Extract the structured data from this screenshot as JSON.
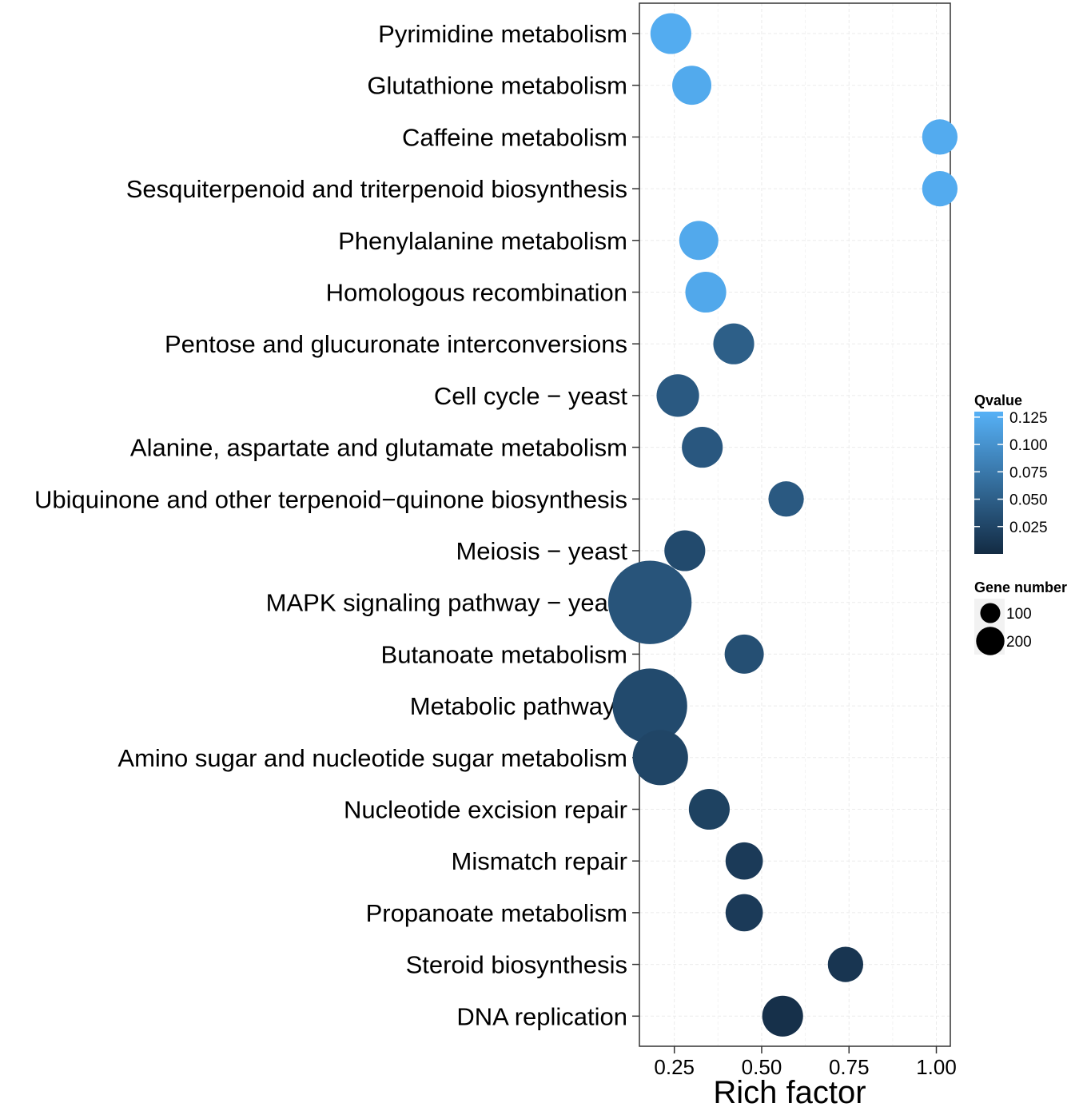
{
  "chart_data": {
    "type": "scatter",
    "title": "",
    "xlabel": "Rich factor",
    "ylabel": "",
    "xlim": [
      0.15,
      1.04
    ],
    "x_ticks": [
      0.25,
      0.5,
      0.75,
      1.0
    ],
    "x_tick_labels": [
      "0.25",
      "0.50",
      "0.75",
      "1.00"
    ],
    "grid": true,
    "categories": [
      "Pyrimidine metabolism",
      "Glutathione metabolism",
      "Caffeine metabolism",
      "Sesquiterpenoid and triterpenoid biosynthesis",
      "Phenylalanine metabolism",
      "Homologous recombination",
      "Pentose and glucuronate interconversions",
      "Cell cycle − yeast",
      "Alanine, aspartate and glutamate metabolism",
      "Ubiquinone and other terpenoid−quinone biosynthesis",
      "Meiosis − yeast",
      "MAPK signaling pathway − yeast",
      "Butanoate metabolism",
      "Metabolic pathways",
      "Amino sugar and nucleotide sugar metabolism",
      "Nucleotide excision repair",
      "Mismatch repair",
      "Propanoate metabolism",
      "Steroid biosynthesis",
      "DNA replication"
    ],
    "rich_factor": [
      0.24,
      0.3,
      1.01,
      1.01,
      0.32,
      0.34,
      0.42,
      0.26,
      0.33,
      0.57,
      0.28,
      0.18,
      0.45,
      0.18,
      0.21,
      0.35,
      0.45,
      0.45,
      0.74,
      0.56
    ],
    "qvalue": [
      0.125,
      0.123,
      0.124,
      0.124,
      0.122,
      0.121,
      0.05,
      0.045,
      0.043,
      0.045,
      0.03,
      0.04,
      0.035,
      0.03,
      0.025,
      0.022,
      0.015,
      0.015,
      0.01,
      0.005
    ],
    "gene_number": [
      60,
      55,
      45,
      45,
      55,
      60,
      60,
      65,
      60,
      45,
      60,
      250,
      55,
      200,
      110,
      60,
      50,
      50,
      45,
      60
    ],
    "color_legend": {
      "title": "Qvalue",
      "ticks": [
        0.125,
        0.1,
        0.075,
        0.05,
        0.025
      ],
      "tick_labels": [
        "0.125",
        "0.100",
        "0.075",
        "0.050",
        "0.025"
      ],
      "range": [
        0.0,
        0.13
      ],
      "low_color": "#132B43",
      "high_color": "#56B1F7"
    },
    "size_legend": {
      "title": "Gene number",
      "values": [
        100,
        200
      ],
      "labels": [
        "100",
        "200"
      ]
    },
    "legend_position": "right"
  }
}
